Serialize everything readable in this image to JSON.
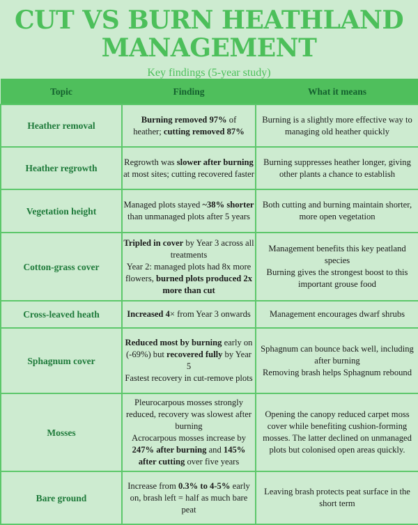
{
  "title_line1": "CUT VS BURN HEATHLAND",
  "title_line2": "MANAGEMENT",
  "subtitle": "Key findings (5-year study)",
  "colors": {
    "background": "#cdebd0",
    "header": "#4fbf5c",
    "accent": "#4cbf5a",
    "topic_text": "#1e7a3a"
  },
  "table": {
    "headers": [
      "Topic",
      "Finding",
      "What it means"
    ],
    "rows": [
      {
        "topic": "Heather removal",
        "finding": [
          [
            {
              "t": "Burning removed 97%",
              "b": true
            },
            {
              "t": " of",
              "b": false
            }
          ],
          [
            {
              "t": "heather; ",
              "b": false
            },
            {
              "t": "cutting removed 87%",
              "b": true
            }
          ]
        ],
        "meaning": [
          "Burning is a slightly more effective way to managing old heather quickly"
        ]
      },
      {
        "topic": "Heather regrowth",
        "finding": [
          [
            {
              "t": "Regrowth was ",
              "b": false
            },
            {
              "t": "slower after burning",
              "b": true
            },
            {
              "t": " at most sites; cutting recovered faster",
              "b": false
            }
          ]
        ],
        "meaning": [
          "Burning suppresses heather longer, giving other plants a chance to establish"
        ]
      },
      {
        "topic": "Vegetation height",
        "finding": [
          [
            {
              "t": "Managed plots stayed ",
              "b": false
            },
            {
              "t": "~38% shorter",
              "b": true
            },
            {
              "t": " than unmanaged plots after 5 years",
              "b": false
            }
          ]
        ],
        "meaning": [
          "Both cutting and burning maintain shorter, more open vegetation"
        ]
      },
      {
        "topic": "Cotton-grass cover",
        "finding": [
          [
            {
              "t": "Tripled in cover",
              "b": true
            },
            {
              "t": " by Year 3 across all treatments",
              "b": false
            }
          ],
          [
            {
              "t": "Year 2: managed plots had 8x more flowers, ",
              "b": false
            },
            {
              "t": "burned plots produced 2x more than cut",
              "b": true
            }
          ]
        ],
        "meaning": [
          "Management benefits this key peatland species",
          "Burning gives the strongest boost to this important grouse food"
        ]
      },
      {
        "topic": "Cross-leaved heath",
        "finding": [
          [
            {
              "t": "Increased 4",
              "b": true
            },
            {
              "t": "× from Year 3 onwards",
              "b": false
            }
          ]
        ],
        "meaning": [
          "Management encourages dwarf shrubs"
        ]
      },
      {
        "topic": "Sphagnum cover",
        "finding": [
          [
            {
              "t": "Reduced most by burning",
              "b": true
            },
            {
              "t": " early on (-69%) but ",
              "b": false
            },
            {
              "t": "recovered fully",
              "b": true
            },
            {
              "t": " by Year 5",
              "b": false
            }
          ],
          [
            {
              "t": "Fastest recovery in cut-remove plots",
              "b": false
            }
          ]
        ],
        "meaning": [
          "Sphagnum can bounce back well, including after burning",
          "Removing brash helps Sphagnum rebound"
        ]
      },
      {
        "topic": "Mosses",
        "finding": [
          [
            {
              "t": "Pleurocarpous mosses strongly reduced, recovery was slowest after burning",
              "b": false
            }
          ],
          [
            {
              "t": "Acrocarpous mosses increase by ",
              "b": false
            },
            {
              "t": "247% after burning",
              "b": true
            },
            {
              "t": " and ",
              "b": false
            },
            {
              "t": "145% after cutting",
              "b": true
            },
            {
              "t": " over five years",
              "b": false
            }
          ]
        ],
        "meaning": [
          "Opening the canopy reduced carpet moss cover while benefiting cushion-forming mosses. The latter declined on unmanaged plots but colonised open areas quickly."
        ]
      },
      {
        "topic": "Bare ground",
        "finding": [
          [
            {
              "t": "Increase from ",
              "b": false
            },
            {
              "t": "0.3% to 4-5%",
              "b": true
            },
            {
              "t": " early on, brash left = half as much bare peat",
              "b": false
            }
          ]
        ],
        "meaning": [
          "Leaving brash protects peat surface in the short term"
        ]
      }
    ]
  }
}
